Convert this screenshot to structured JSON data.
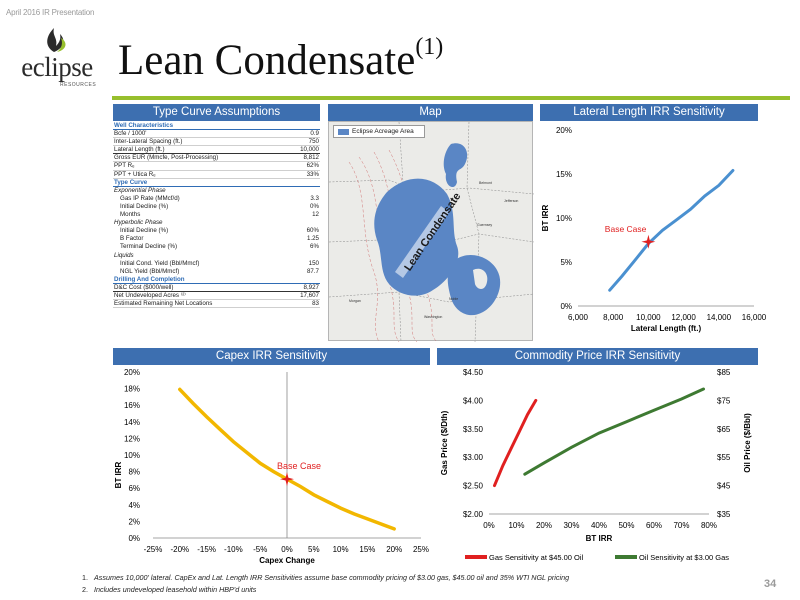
{
  "header": {
    "caption": "April 2016 IR Presentation",
    "logo_text": "eclipse",
    "logo_sub": "RESOURCES",
    "title": "Lean Condensate",
    "title_sup": "(1)"
  },
  "panels": {
    "type_curve": "Type Curve Assumptions",
    "map": "Map",
    "lateral": "Lateral Length IRR Sensitivity",
    "capex": "Capex IRR Sensitivity",
    "commodity": "Commodity Price IRR Sensitivity"
  },
  "type_curve": {
    "rows": [
      {
        "label": "Well Characteristics",
        "value": "",
        "kind": "sec"
      },
      {
        "label": "Bcfe / 1000'",
        "value": "0.9",
        "kind": "row"
      },
      {
        "label": "Inter-Lateral Spacing (ft.)",
        "value": "750",
        "kind": "row"
      },
      {
        "label": "Lateral Length (ft.)",
        "value": "10,000",
        "kind": "lastb"
      },
      {
        "label": "Gross EUR (Mmcfe, Post-Processing)",
        "value": "8,812",
        "kind": "row"
      },
      {
        "label": "PPT Rₑ",
        "value": "62%",
        "kind": "row"
      },
      {
        "label": "PPT + Utica Rₑ",
        "value": "33%",
        "kind": "row"
      },
      {
        "label": "Type Curve",
        "value": "",
        "kind": "sec"
      },
      {
        "label": "Exponential Phase",
        "value": "",
        "kind": "sub"
      },
      {
        "label": "Gas IP Rate (MMcf/d)",
        "value": "3.3",
        "kind": "ind"
      },
      {
        "label": "Initial Decline (%)",
        "value": "0%",
        "kind": "ind"
      },
      {
        "label": "Months",
        "value": "12",
        "kind": "ind"
      },
      {
        "label": "Hyperbolic Phase",
        "value": "",
        "kind": "sub"
      },
      {
        "label": "Initial Decline (%)",
        "value": "60%",
        "kind": "ind"
      },
      {
        "label": "B Factor",
        "value": "1.25",
        "kind": "ind"
      },
      {
        "label": "Terminal Decline (%)",
        "value": "6%",
        "kind": "ind"
      },
      {
        "label": "Liquids",
        "value": "",
        "kind": "sub"
      },
      {
        "label": "Initial Cond. Yield (Bbl/Mmcf)",
        "value": "150",
        "kind": "ind"
      },
      {
        "label": "NGL Yield (Bbl/Mmcf)",
        "value": "87.7",
        "kind": "ind"
      },
      {
        "label": "Drilling And Completion",
        "value": "",
        "kind": "sec"
      },
      {
        "label": "D&C Cost ($000/well)",
        "value": "8,927",
        "kind": "lastb"
      },
      {
        "label": "Net Undeveloped Acres ⁽²⁾",
        "value": "17,607",
        "kind": "row"
      },
      {
        "label": "Estimated Remaining Net Locations",
        "value": "83",
        "kind": "row"
      }
    ]
  },
  "map": {
    "legend": "Eclipse Acreage Area",
    "region_label": "Lean Condensate",
    "accent": "#5a86c5"
  },
  "chart_data": [
    {
      "type": "line",
      "name": "lateral",
      "xlabel": "Lateral Length (ft.)",
      "ylabel": "BT IRR",
      "xlim": [
        6000,
        16000
      ],
      "ylim": [
        0,
        20
      ],
      "x_ticks": [
        "6,000",
        "8,000",
        "10,000",
        "12,000",
        "14,000",
        "16,000"
      ],
      "y_ticks": [
        "0%",
        "5%",
        "10%",
        "15%",
        "20%"
      ],
      "x": [
        7800,
        8500,
        9200,
        10000,
        10800,
        11600,
        12400,
        13200,
        14000,
        14800
      ],
      "y": [
        1.8,
        3.4,
        5.1,
        7.1,
        8.6,
        9.8,
        11.0,
        12.5,
        13.7,
        15.4
      ],
      "color": "#4a90d0",
      "annotation": {
        "text": "Base Case",
        "x": 10000,
        "y": 7.3
      }
    },
    {
      "type": "line",
      "name": "capex",
      "xlabel": "Capex Change",
      "ylabel": "BT IRR",
      "xlim": [
        -25,
        25
      ],
      "ylim": [
        0,
        20
      ],
      "x_ticks": [
        "-25%",
        "-20%",
        "-15%",
        "-10%",
        "-5%",
        "0%",
        "5%",
        "10%",
        "15%",
        "20%",
        "25%"
      ],
      "y_ticks": [
        "0%",
        "2%",
        "4%",
        "6%",
        "8%",
        "10%",
        "12%",
        "14%",
        "16%",
        "18%",
        "20%"
      ],
      "x": [
        -20,
        -17.5,
        -15,
        -12.5,
        -10,
        -7.5,
        -5,
        -2.5,
        0,
        2.5,
        5,
        7.5,
        10,
        12.5,
        15,
        17.5,
        20
      ],
      "y": [
        17.9,
        16.2,
        14.6,
        13.1,
        11.6,
        10.3,
        9.0,
        8.0,
        7.1,
        6.2,
        5.2,
        4.4,
        3.6,
        2.9,
        2.3,
        1.7,
        1.1
      ],
      "color": "#f2b700",
      "annotation": {
        "text": "Base Case",
        "x": 0,
        "y": 7.1
      }
    },
    {
      "type": "line",
      "name": "commodity",
      "xlabel": "BT IRR",
      "ylabel": "Gas Price ($/Dth)",
      "y2label": "Oil Price ($/Bbl)",
      "xlim": [
        0,
        80
      ],
      "ylim": [
        2.0,
        4.5
      ],
      "y2lim": [
        35,
        85
      ],
      "x_ticks": [
        "0%",
        "10%",
        "20%",
        "30%",
        "40%",
        "50%",
        "60%",
        "70%",
        "80%"
      ],
      "y_ticks": [
        "$2.00",
        "$2.50",
        "$3.00",
        "$3.50",
        "$4.00",
        "$4.50"
      ],
      "y2_ticks": [
        "$35",
        "$45",
        "$55",
        "$65",
        "$75",
        "$85"
      ],
      "series": [
        {
          "name": "Gas Sensitivity at $45.00 Oil",
          "axis": "left",
          "color": "#e02020",
          "x": [
            2,
            5,
            8,
            11,
            14,
            17
          ],
          "y": [
            2.5,
            2.85,
            3.15,
            3.45,
            3.75,
            4.0
          ]
        },
        {
          "name": "Oil Sensitivity at $3.00 Gas",
          "axis": "right",
          "color": "#3e7a32",
          "x": [
            13,
            20,
            30,
            40,
            50,
            60,
            70,
            78
          ],
          "y": [
            49,
            53,
            58.5,
            63.5,
            67.5,
            71.5,
            75.5,
            79
          ]
        }
      ]
    }
  ],
  "footnotes": [
    {
      "n": "1.",
      "text": "Assumes 10,000' lateral. CapEx and Lat. Length IRR Sensitivities assume base commodity pricing of $3.00 gas, $45.00 oil and 35% WTI NGL pricing"
    },
    {
      "n": "2.",
      "text": "Includes undeveloped leasehold within HBP'd units"
    }
  ],
  "page_number": "34"
}
